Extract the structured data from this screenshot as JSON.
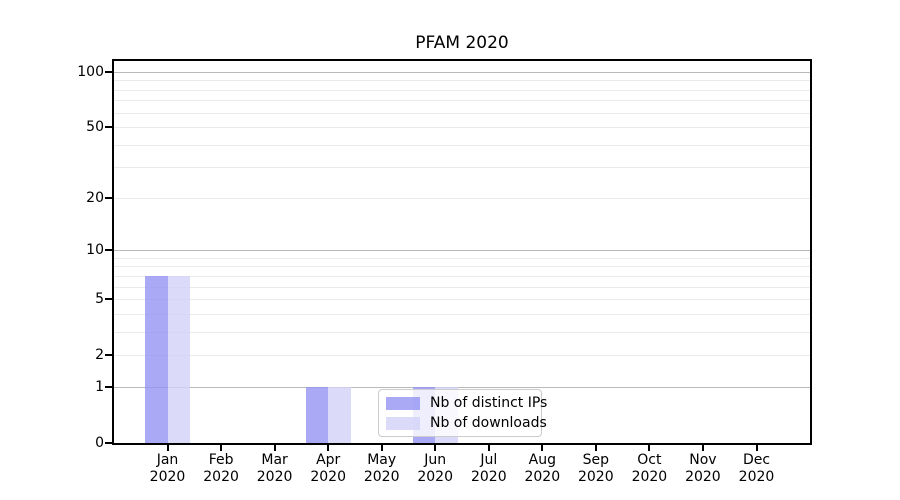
{
  "chart_data": {
    "type": "bar",
    "title": "PFAM 2020",
    "months": [
      "Jan",
      "Feb",
      "Mar",
      "Apr",
      "May",
      "Jun",
      "Jul",
      "Aug",
      "Sep",
      "Oct",
      "Nov",
      "Dec"
    ],
    "year": "2020",
    "categories": [
      "Jan 2020",
      "Feb 2020",
      "Mar 2020",
      "Apr 2020",
      "May 2020",
      "Jun 2020",
      "Jul 2020",
      "Aug 2020",
      "Sep 2020",
      "Oct 2020",
      "Nov 2020",
      "Dec 2020"
    ],
    "series": [
      {
        "name": "Nb of distinct IPs",
        "color": "rgba(148,148,244,0.8)",
        "values": [
          7,
          0,
          0,
          1,
          0,
          1,
          0,
          0,
          0,
          0,
          0,
          0
        ]
      },
      {
        "name": "Nb of downloads",
        "color": "rgba(210,210,248,0.8)",
        "values": [
          7,
          0,
          0,
          1,
          0,
          1,
          0,
          0,
          0,
          0,
          0,
          0
        ]
      }
    ],
    "yticks": [
      0,
      1,
      2,
      5,
      10,
      20,
      50,
      100
    ],
    "yscale": "log1p",
    "ylim": [
      0,
      115
    ],
    "xlabel": "",
    "ylabel": "",
    "grid": {
      "axis": "y",
      "major_values": [
        1,
        10,
        100
      ],
      "minor_values": [
        2,
        3,
        4,
        5,
        6,
        7,
        8,
        9,
        20,
        30,
        40,
        50,
        60,
        70,
        80,
        90
      ],
      "major_color": "#b9b9b9",
      "minor_color": "#eaeaea"
    },
    "legend": {
      "position": "lower center",
      "entries": [
        "Nb of distinct IPs",
        "Nb of downloads"
      ]
    }
  }
}
